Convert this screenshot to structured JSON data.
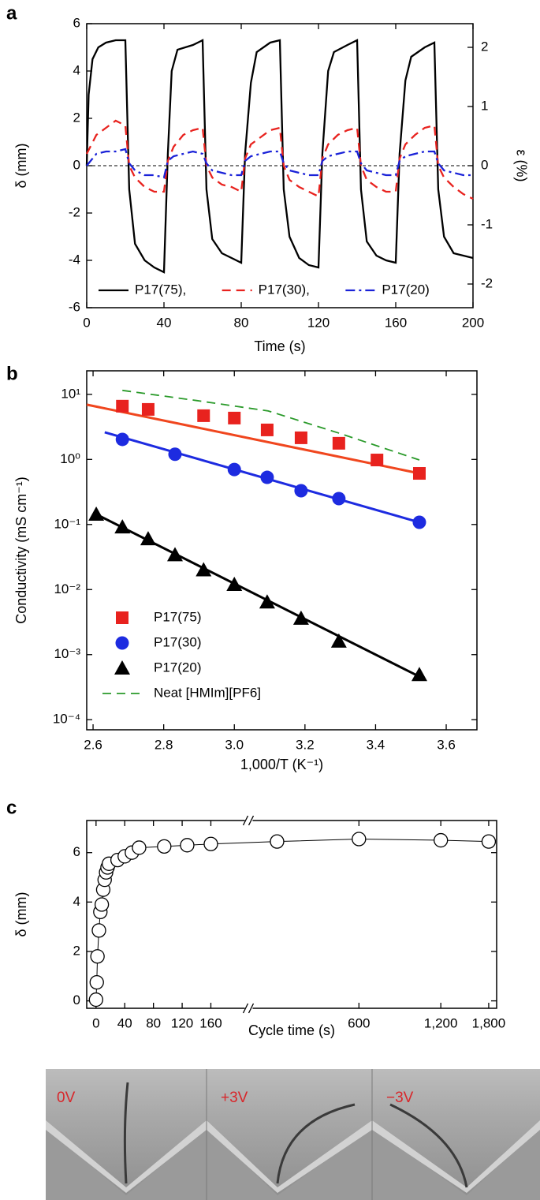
{
  "chart_data": [
    {
      "type": "line",
      "panel": "a",
      "xlabel": "Time (s)",
      "ylabel": "δ (mm)",
      "y2label": "ε (%)",
      "xlim": [
        0,
        200
      ],
      "xticks": [
        0,
        40,
        80,
        120,
        160,
        200
      ],
      "ylim": [
        -6,
        6
      ],
      "yticks": [
        -6,
        -4,
        -2,
        0,
        2,
        4,
        6
      ],
      "y2lim": [
        -2.4,
        2.4
      ],
      "y2ticks": [
        -2,
        -1,
        0,
        1,
        2
      ],
      "reference_line": 0,
      "legend": "bottom",
      "series": [
        {
          "name": "P17(75),",
          "color": "#000000",
          "dash": "solid",
          "x": [
            0,
            1,
            3,
            6,
            10,
            15,
            20,
            22,
            25,
            30,
            35,
            40,
            42,
            44,
            47,
            55,
            60,
            62,
            65,
            70,
            75,
            80,
            82,
            85,
            88,
            95,
            100,
            102,
            105,
            110,
            115,
            120,
            122,
            125,
            128,
            135,
            140,
            142,
            145,
            150,
            155,
            160,
            162,
            165,
            168,
            175,
            180,
            182,
            185,
            190,
            195,
            200
          ],
          "values": [
            0,
            3,
            4.5,
            5,
            5.2,
            5.3,
            5.3,
            -1,
            -3.3,
            -4,
            -4.3,
            -4.5,
            0.5,
            4,
            4.9,
            5.1,
            5.3,
            -1,
            -3.1,
            -3.7,
            -3.9,
            -4.1,
            0.5,
            3.5,
            4.8,
            5.2,
            5.3,
            -1,
            -3,
            -3.9,
            -4.2,
            -4.3,
            0.5,
            4,
            4.8,
            5.1,
            5.3,
            -1,
            -3.2,
            -3.8,
            -4,
            -4.1,
            0.5,
            3.6,
            4.6,
            5,
            5.2,
            -1,
            -3,
            -3.7,
            -3.8,
            -3.9
          ]
        },
        {
          "name": "P17(30),",
          "color": "#e8221e",
          "dash": "dashed",
          "x": [
            0,
            5,
            10,
            15,
            20,
            22,
            25,
            30,
            35,
            40,
            42,
            45,
            50,
            55,
            60,
            62,
            65,
            70,
            75,
            80,
            82,
            85,
            90,
            95,
            100,
            102,
            105,
            110,
            115,
            120,
            122,
            125,
            130,
            135,
            140,
            142,
            145,
            150,
            155,
            160,
            162,
            165,
            170,
            175,
            180,
            182,
            185,
            190,
            195,
            200
          ],
          "values": [
            0.5,
            1.3,
            1.6,
            1.9,
            1.7,
            0,
            -0.5,
            -0.9,
            -1.1,
            -1.1,
            0.2,
            0.8,
            1.3,
            1.5,
            1.6,
            0,
            -0.5,
            -0.8,
            -0.9,
            -1.1,
            0.3,
            0.9,
            1.2,
            1.5,
            1.6,
            0,
            -0.6,
            -0.9,
            -1.1,
            -1.3,
            0.3,
            0.9,
            1.3,
            1.5,
            1.6,
            0,
            -0.6,
            -0.9,
            -1.1,
            -1.1,
            0.3,
            0.9,
            1.3,
            1.6,
            1.7,
            0,
            -0.5,
            -0.9,
            -1.2,
            -1.4
          ]
        },
        {
          "name": "P17(20)",
          "color": "#1a22d8",
          "dash": "dashdot",
          "x": [
            0,
            5,
            10,
            15,
            20,
            22,
            25,
            30,
            35,
            40,
            42,
            45,
            50,
            55,
            60,
            62,
            65,
            70,
            75,
            80,
            82,
            85,
            90,
            95,
            100,
            102,
            105,
            110,
            115,
            120,
            122,
            125,
            130,
            135,
            140,
            142,
            145,
            150,
            155,
            160,
            162,
            165,
            170,
            175,
            180,
            182,
            185,
            190,
            195,
            200
          ],
          "values": [
            0,
            0.5,
            0.6,
            0.6,
            0.7,
            0.1,
            -0.2,
            -0.4,
            -0.4,
            -0.5,
            0.2,
            0.4,
            0.5,
            0.6,
            0.5,
            0.1,
            -0.2,
            -0.3,
            -0.4,
            -0.4,
            0.2,
            0.4,
            0.5,
            0.6,
            0.6,
            0.1,
            -0.2,
            -0.3,
            -0.4,
            -0.4,
            0.2,
            0.4,
            0.5,
            0.6,
            0.6,
            0.1,
            -0.2,
            -0.3,
            -0.4,
            -0.4,
            0.2,
            0.4,
            0.5,
            0.6,
            0.6,
            0.1,
            -0.2,
            -0.3,
            -0.4,
            -0.4
          ]
        }
      ]
    },
    {
      "type": "scatter",
      "panel": "b",
      "xlabel": "1,000/T (K⁻¹)",
      "ylabel": "Conductivity (mS cm⁻¹)",
      "xlim": [
        2.582,
        3.687
      ],
      "xticks": [
        2.6,
        2.8,
        {
          "value": 3,
          "label": "3.0"
        },
        3.2,
        3.4,
        3.6
      ],
      "ylim": [
        7e-05,
        23
      ],
      "log_y": true,
      "yticks": [
        {
          "value": 10,
          "label": "10¹"
        },
        {
          "value": 1,
          "label": "10⁰"
        },
        {
          "value": 0.1,
          "label": "10⁻¹"
        },
        {
          "value": 0.01,
          "label": "10⁻²"
        },
        {
          "value": 0.001,
          "label": "10⁻³"
        },
        {
          "value": 0.0001,
          "label": "10⁻⁴"
        }
      ],
      "legend": "lower left",
      "series": [
        {
          "name": "P17(75)",
          "color": "#e8221e",
          "marker": "square",
          "x": [
            2.683,
            2.756,
            2.913,
            3.0,
            3.093,
            3.189,
            3.296,
            3.404,
            3.524
          ],
          "values": [
            6.58,
            5.87,
            4.7,
            4.32,
            2.84,
            2.15,
            1.77,
            0.98,
            0.61
          ],
          "fit": {
            "color": "#f0461e",
            "x": [
              2.582,
              3.524
            ],
            "values": [
              6.95,
              0.61
            ]
          }
        },
        {
          "name": "P17(30)",
          "color": "#1d2be0",
          "marker": "circle",
          "x": [
            2.683,
            2.832,
            3.0,
            3.093,
            3.189,
            3.296,
            3.524
          ],
          "values": [
            2.03,
            1.2,
            0.7,
            0.53,
            0.33,
            0.25,
            0.108
          ],
          "fit": {
            "color": "#1d2be0",
            "x": [
              2.633,
              3.524
            ],
            "values": [
              2.61,
              0.108
            ]
          }
        },
        {
          "name": "P17(20)",
          "color": "#000000",
          "marker": "triangle",
          "x": [
            2.609,
            2.683,
            2.756,
            2.832,
            2.913,
            3.0,
            3.093,
            3.189,
            3.296,
            3.524
          ],
          "values": [
            0.143,
            0.091,
            0.06,
            0.034,
            0.02,
            0.0119,
            0.0064,
            0.0036,
            0.0016,
            0.00049
          ],
          "fit": {
            "color": "#000000",
            "x": [
              2.6,
              3.524
            ],
            "values": [
              0.152,
              0.00046
            ]
          }
        },
        {
          "name": "Neat [HMIm][PF6]",
          "color": "#2a9a2a",
          "dash": "dashed",
          "x": [
            2.683,
            2.895,
            3.096,
            3.296,
            3.524
          ],
          "values": [
            11.5,
            8.0,
            5.56,
            2.54,
            0.98
          ]
        }
      ]
    },
    {
      "type": "line",
      "panel": "c",
      "xlabel": "Cycle time (s)",
      "ylabel": "δ (mm)",
      "ylim": [
        -0.3,
        7.3
      ],
      "yticks": [
        0,
        2,
        4,
        6
      ],
      "x_segments": [
        {
          "xlim": [
            -13,
            210
          ],
          "xticks": [
            0,
            40,
            80,
            120,
            160
          ]
        },
        {
          "xlim": [
            240,
            1925
          ],
          "log_x": true,
          "xticks": [
            600,
            {
              "value": 1200,
              "label": "1,200"
            },
            {
              "value": 1800,
              "label": "1,800"
            }
          ]
        }
      ],
      "series": [
        {
          "color": "#000000",
          "marker": "open-circle",
          "x": [
            0,
            1,
            2,
            4,
            6,
            8,
            10,
            12,
            14,
            16,
            18,
            30,
            40,
            50,
            60,
            95,
            127,
            160,
            300,
            600,
            1200,
            1800
          ],
          "values": [
            0.05,
            0.75,
            1.8,
            2.85,
            3.6,
            3.9,
            4.5,
            4.9,
            5.2,
            5.4,
            5.55,
            5.7,
            5.85,
            6.0,
            6.2,
            6.25,
            6.3,
            6.35,
            6.45,
            6.55,
            6.5,
            6.45
          ]
        }
      ]
    }
  ],
  "photo": {
    "labels": [
      "0V",
      "+3V",
      "−3V"
    ]
  }
}
